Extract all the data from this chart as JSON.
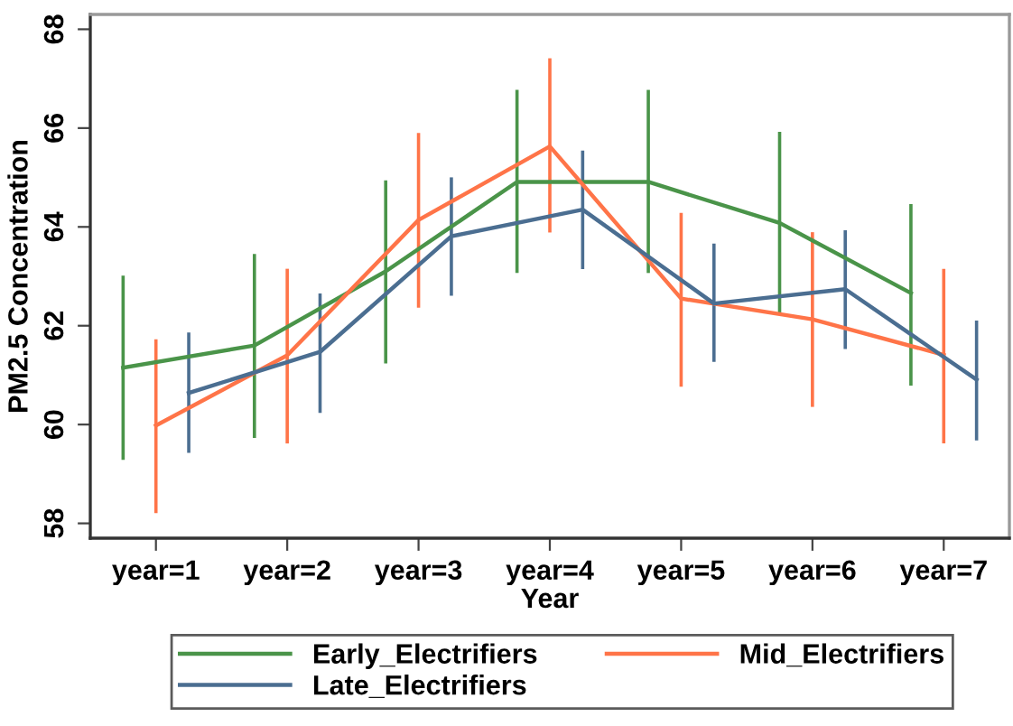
{
  "chart_data": {
    "type": "line",
    "xlabel": "Year",
    "ylabel": "PM2.5 Concentration",
    "categories": [
      "year=1",
      "year=2",
      "year=3",
      "year=4",
      "year=5",
      "year=6",
      "year=7"
    ],
    "series": [
      {
        "name": "Early_Electrifiers",
        "color": "#4a9449",
        "values": [
          61.15,
          61.6,
          63.1,
          64.91,
          64.91,
          64.08,
          62.66
        ],
        "errors": [
          [
            59.32,
            62.98
          ],
          [
            59.76,
            63.42
          ],
          [
            61.27,
            64.91
          ],
          [
            63.1,
            66.74
          ],
          [
            63.1,
            66.74
          ],
          [
            62.25,
            65.89
          ],
          [
            60.82,
            64.43
          ]
        ]
      },
      {
        "name": "Mid_Electrifiers",
        "color": "#ff7448",
        "values": [
          59.98,
          61.4,
          64.14,
          65.63,
          62.55,
          62.13,
          61.41
        ],
        "errors": [
          [
            58.24,
            61.69
          ],
          [
            59.65,
            63.12
          ],
          [
            62.4,
            65.87
          ],
          [
            63.92,
            67.38
          ],
          [
            60.8,
            64.25
          ],
          [
            60.39,
            63.86
          ],
          [
            59.65,
            63.12
          ]
        ]
      },
      {
        "name": "Late_Electrifiers",
        "color": "#4b6e91",
        "values": [
          60.64,
          61.47,
          63.81,
          64.35,
          62.45,
          62.74,
          60.91
        ],
        "errors": [
          [
            59.46,
            61.83
          ],
          [
            60.27,
            62.62
          ],
          [
            62.64,
            64.97
          ],
          [
            63.18,
            65.51
          ],
          [
            61.3,
            63.63
          ],
          [
            61.56,
            63.9
          ],
          [
            59.71,
            62.07
          ]
        ]
      }
    ],
    "ylim": [
      57.7,
      68.3
    ],
    "yticks": [
      58,
      60,
      62,
      64,
      66,
      68
    ],
    "legend": "bottom"
  }
}
